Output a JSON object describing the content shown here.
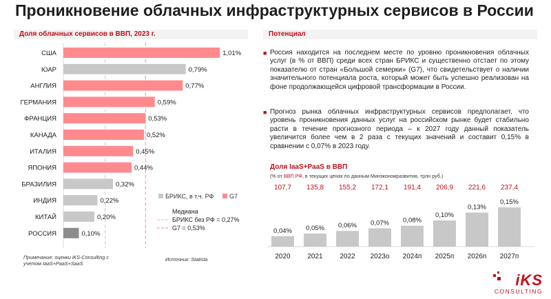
{
  "title": "Проникновение облачных инфраструктурных сервисов в России",
  "left_panel": {
    "heading": "Доля облачных сервисов в ВВП, 2023 г.",
    "note": "Примечание: оценки iKS-Consulting с учетом IaaS+PaaS+SaaS",
    "source": "Источник: Statista"
  },
  "right_panel": {
    "heading": "Потенциал",
    "bullets": [
      "Россия находится на последнем месте по уровню проникновения облачных услуг (в % от ВВП) среди всех стран БРИКС и существенно отстает по этому показателю от стран «Большой семерки» (G7), что свидетельствует о наличии значительного потенциала роста, который может быть успешно реализован на фоне продолжающейся цифровой трансформации в России.",
      "Прогноз рынка облачных инфраструктурных сервисов предполагает, что уровень проникновения данных услуг на российском рынке будет стабильно расти в течение прогнозного периода – к 2027 году данный показатель увеличится более чем в 2 раза с текущих значений и составит 0,15% в сравнении с 0,07% в 2023 году."
    ],
    "bullet_mark": "■",
    "chart_heading": "Доля IaaS+PaaS в ВВП",
    "chart_note_prefix": "(% от ",
    "chart_note_red": "ВВП РФ",
    "chart_note_suffix": ", в текущих ценах по данным Минэкономразвития, трлн руб.)"
  },
  "colors": {
    "accent": "#c0101a",
    "g7": "#ff8a8e",
    "brics": "#c8c8c8",
    "russia": "#8c8c8c"
  },
  "logo": {
    "main": "iKS",
    "sub": "CONSULTING"
  },
  "chart_data": [
    {
      "type": "bar",
      "orientation": "horizontal",
      "title": "Доля облачных сервисов в ВВП, 2023 г.",
      "categories": [
        "США",
        "ЮАР",
        "АНГЛИЯ",
        "ГЕРМАНИЯ",
        "ФРАНЦИЯ",
        "КАНАДА",
        "ИТАЛИЯ",
        "ЯПОНИЯ",
        "БРАЗИЛИЯ",
        "ИНДИЯ",
        "КИТАЙ",
        "РОССИЯ"
      ],
      "values": [
        1.01,
        0.79,
        0.77,
        0.59,
        0.53,
        0.52,
        0.45,
        0.44,
        0.32,
        0.22,
        0.2,
        0.1
      ],
      "value_labels": [
        "1,01%",
        "0,79%",
        "0,77%",
        "0,59%",
        "0,53%",
        "0,52%",
        "0,45%",
        "0,44%",
        "0,32%",
        "0,22%",
        "0,20%",
        "0,10%"
      ],
      "groups": [
        "g7",
        "brics",
        "g7",
        "g7",
        "g7",
        "g7",
        "g7",
        "g7",
        "brics",
        "brics",
        "brics",
        "russia"
      ],
      "legend": [
        {
          "label": "БРИКС, в т.ч. РФ",
          "color": "#c8c8c8"
        },
        {
          "label": "G7",
          "color": "#ff8a8e"
        }
      ],
      "reference_lines": [
        {
          "name": "Медиана БРИКС без РФ = 0,27%",
          "value": 0.27,
          "color": "#c8c8c8"
        },
        {
          "name": "Медиана G7 = 0,53%",
          "value": 0.53,
          "color": "#ff8a8e"
        }
      ],
      "ref_legend_title": "Медиана",
      "xlim": [
        0,
        1.2
      ]
    },
    {
      "type": "bar",
      "title": "Доля IaaS+PaaS в ВВП",
      "categories": [
        "2020",
        "2021",
        "2022",
        "2023о",
        "2024п",
        "2025п",
        "2026п",
        "2027п"
      ],
      "values": [
        0.04,
        0.05,
        0.06,
        0.07,
        0.08,
        0.1,
        0.13,
        0.15
      ],
      "value_labels": [
        "0,04%",
        "0,05%",
        "0,06%",
        "0,07%",
        "0,08%",
        "0,10%",
        "0,13%",
        "0,15%"
      ],
      "gdp": [
        "107,7",
        "135,8",
        "155,2",
        "172,1",
        "191,4",
        "206,9",
        "221,6",
        "237,4"
      ],
      "ylim": [
        0,
        0.15
      ]
    }
  ]
}
